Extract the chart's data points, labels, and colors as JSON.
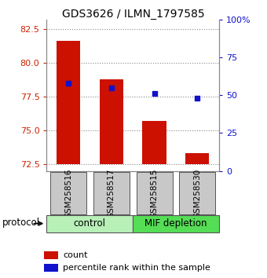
{
  "title": "GDS3626 / ILMN_1797585",
  "samples": [
    "GSM258516",
    "GSM258517",
    "GSM258515",
    "GSM258530"
  ],
  "red_values": [
    81.6,
    78.8,
    75.7,
    73.3
  ],
  "blue_pct": [
    58,
    55,
    51,
    48
  ],
  "ylim_left": [
    72.0,
    83.2
  ],
  "ylim_right": [
    0,
    100
  ],
  "yticks_left": [
    72.5,
    75.0,
    77.5,
    80.0,
    82.5
  ],
  "yticks_right": [
    0,
    25,
    50,
    75,
    100
  ],
  "ytick_labels_right": [
    "0",
    "25",
    "50",
    "75",
    "100%"
  ],
  "groups": [
    {
      "label": "control",
      "indices": [
        0,
        1
      ],
      "color": "#b8f0b8"
    },
    {
      "label": "MIF depletion",
      "indices": [
        2,
        3
      ],
      "color": "#55dd55"
    }
  ],
  "protocol_label": "protocol",
  "bar_color": "#cc1100",
  "dot_color": "#1111cc",
  "grid_color": "#888888",
  "left_tick_color": "#cc2200",
  "right_tick_color": "#1111cc",
  "bar_width": 0.55,
  "ybase": 72.5
}
